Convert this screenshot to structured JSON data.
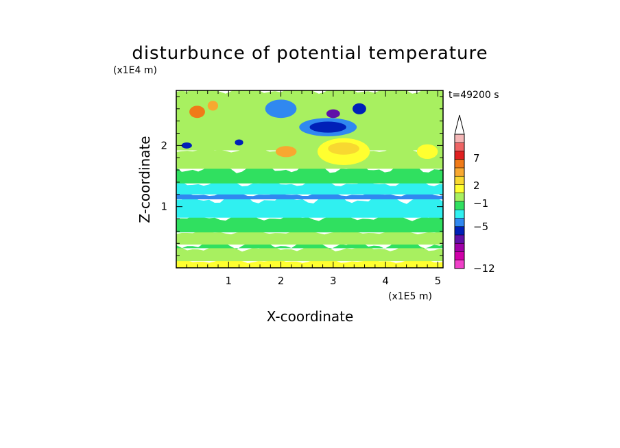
{
  "chart_data": {
    "type": "heatmap",
    "title": "disturbunce of potential temperature",
    "time_label": "t=49200 s",
    "xlabel": "X-coordinate",
    "ylabel": "Z-coordinate",
    "x_unit": "(x1E5 m)",
    "y_unit": "(x1E4 m)",
    "xlim": [
      0,
      5.1
    ],
    "ylim": [
      0,
      2.9
    ],
    "x_ticks": [
      1,
      2,
      3,
      4,
      5
    ],
    "y_ticks": [
      1,
      2
    ],
    "x_tick_labels": [
      "1",
      "2",
      "3",
      "4",
      "5"
    ],
    "y_tick_labels": [
      "1",
      "2"
    ],
    "colorbar": {
      "labels": [
        {
          "value": 7,
          "text": "7"
        },
        {
          "value": 2,
          "text": "2"
        },
        {
          "value": -1,
          "text": "−1"
        },
        {
          "value": -5,
          "text": "−5"
        },
        {
          "value": -12,
          "text": "−12"
        }
      ],
      "colors_top_to_bottom": [
        "#f4b6b6",
        "#ee6464",
        "#e02020",
        "#f07a18",
        "#f8a830",
        "#f8d830",
        "#ffff30",
        "#a8f060",
        "#30e060",
        "#30f0f0",
        "#3088f0",
        "#0020b8",
        "#6010a8",
        "#a000a8",
        "#d000a8",
        "#f040c8"
      ],
      "extend_top": true
    },
    "bands": [
      {
        "z": [
          0.0,
          0.11
        ],
        "value": 2.5
      },
      {
        "z": [
          0.11,
          0.32
        ],
        "value": 1.5
      },
      {
        "z": [
          0.32,
          0.38
        ],
        "value": 0.8
      },
      {
        "z": [
          0.38,
          0.58
        ],
        "value": 1.5
      },
      {
        "z": [
          0.58,
          0.82
        ],
        "value": 0.5
      },
      {
        "z": [
          0.82,
          1.12
        ],
        "value": -0.6
      },
      {
        "z": [
          1.12,
          1.2
        ],
        "value": -1.6
      },
      {
        "z": [
          1.2,
          1.38
        ],
        "value": -0.6
      },
      {
        "z": [
          1.38,
          1.62
        ],
        "value": 0.5
      },
      {
        "z": [
          1.62,
          1.92
        ],
        "value": 1.2
      },
      {
        "z": [
          1.92,
          2.9
        ],
        "value": 1.5
      }
    ],
    "anomalies": [
      {
        "x": 2.9,
        "z": 2.3,
        "rx": 0.55,
        "rz": 0.15,
        "value": -2
      },
      {
        "x": 2.9,
        "z": 2.3,
        "rx": 0.35,
        "rz": 0.09,
        "value": -4
      },
      {
        "x": 3.0,
        "z": 2.52,
        "rx": 0.13,
        "rz": 0.07,
        "value": -8
      },
      {
        "x": 2.0,
        "z": 2.6,
        "rx": 0.3,
        "rz": 0.15,
        "value": -2
      },
      {
        "x": 3.5,
        "z": 2.6,
        "rx": 0.13,
        "rz": 0.09,
        "value": -5
      },
      {
        "x": 0.2,
        "z": 2.0,
        "rx": 0.1,
        "rz": 0.05,
        "value": -5
      },
      {
        "x": 1.2,
        "z": 2.05,
        "rx": 0.08,
        "rz": 0.05,
        "value": -4
      },
      {
        "x": 3.2,
        "z": 1.9,
        "rx": 0.5,
        "rz": 0.22,
        "value": 3
      },
      {
        "x": 3.2,
        "z": 1.95,
        "rx": 0.3,
        "rz": 0.1,
        "value": 4
      },
      {
        "x": 2.1,
        "z": 1.9,
        "rx": 0.2,
        "rz": 0.09,
        "value": 5
      },
      {
        "x": 0.4,
        "z": 2.55,
        "rx": 0.15,
        "rz": 0.1,
        "value": 6
      },
      {
        "x": 0.7,
        "z": 2.65,
        "rx": 0.1,
        "rz": 0.08,
        "value": 5
      },
      {
        "x": 4.8,
        "z": 1.9,
        "rx": 0.2,
        "rz": 0.12,
        "value": 3
      }
    ]
  }
}
